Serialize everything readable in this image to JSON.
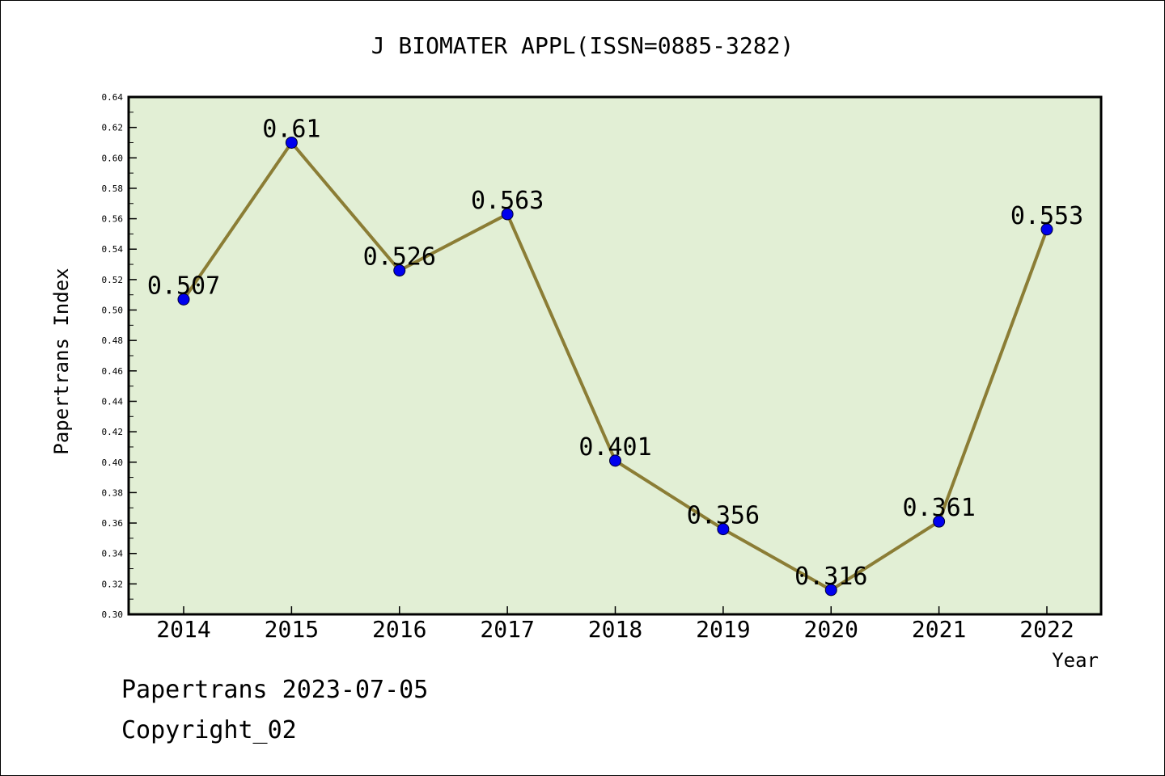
{
  "chart_data": {
    "type": "line",
    "title": "J BIOMATER APPL(ISSN=0885-3282)",
    "xlabel": "Year",
    "ylabel": "Papertrans Index",
    "categories": [
      "2014",
      "2015",
      "2016",
      "2017",
      "2018",
      "2019",
      "2020",
      "2021",
      "2022"
    ],
    "series": [
      {
        "values": [
          0.507,
          0.61,
          0.526,
          0.563,
          0.401,
          0.356,
          0.316,
          0.361,
          0.553
        ],
        "labels": [
          "0.507",
          "0.61",
          "0.526",
          "0.563",
          "0.401",
          "0.356",
          "0.316",
          "0.361",
          "0.553"
        ]
      }
    ],
    "ylim": [
      0.3,
      0.64
    ],
    "yticks": [
      "0.30",
      "0.32",
      "0.34",
      "0.36",
      "0.38",
      "0.40",
      "0.42",
      "0.44",
      "0.46",
      "0.48",
      "0.50",
      "0.52",
      "0.54",
      "0.56",
      "0.58",
      "0.60",
      "0.62",
      "0.64"
    ],
    "grid": false,
    "colors": {
      "plot_background": "#e2efd5",
      "line": "#8b7d35",
      "marker": "#0000ee"
    }
  },
  "footer": {
    "line1": "Papertrans 2023-07-05",
    "line2": "Copyright_02"
  }
}
